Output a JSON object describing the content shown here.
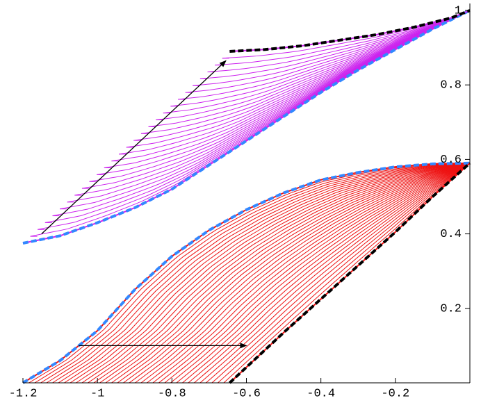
{
  "chart_data": {
    "type": "curve-family",
    "xlim": [
      -1.2,
      0
    ],
    "ylim": [
      0,
      1
    ],
    "xticks": [
      -1.2,
      -1,
      -0.8,
      -0.6,
      -0.4,
      -0.2
    ],
    "yticks": [
      0.2,
      0.4,
      0.6,
      0.8,
      1
    ],
    "families": [
      {
        "color": "#cc22ee",
        "count": 28,
        "start": {
          "color": "#3388ff",
          "x": [
            -1.2,
            -1.1,
            -1.0,
            -0.9,
            -0.8,
            -0.7,
            -0.6,
            -0.5,
            -0.4,
            -0.3,
            -0.2,
            -0.1,
            0
          ],
          "y": [
            0.375,
            0.395,
            0.43,
            0.47,
            0.52,
            0.585,
            0.65,
            0.715,
            0.78,
            0.84,
            0.895,
            0.95,
            1
          ]
        },
        "end": {
          "color": "#000000",
          "x": [
            -0.645,
            -0.55,
            -0.45,
            -0.35,
            -0.25,
            -0.15,
            -0.05,
            0
          ],
          "y": [
            0.89,
            0.895,
            0.905,
            0.92,
            0.935,
            0.955,
            0.98,
            1
          ]
        },
        "arrow": {
          "x": [
            -1.15,
            -0.655
          ],
          "y": [
            0.4,
            0.865
          ]
        }
      },
      {
        "color": "#ee1111",
        "count": 35,
        "start": {
          "color": "#3388ff",
          "x": [
            -1.2,
            -1.1,
            -1.0,
            -0.9,
            -0.8,
            -0.7,
            -0.6,
            -0.5,
            -0.4,
            -0.3,
            -0.2,
            -0.1,
            0
          ],
          "y": [
            0,
            0.06,
            0.14,
            0.25,
            0.34,
            0.41,
            0.465,
            0.51,
            0.545,
            0.565,
            0.58,
            0.588,
            0.59
          ]
        },
        "end": {
          "color": "#000000",
          "x": [
            -0.645,
            -0.5,
            -0.4,
            -0.3,
            -0.2,
            -0.1,
            0
          ],
          "y": [
            0,
            0.135,
            0.225,
            0.315,
            0.405,
            0.5,
            0.59
          ]
        },
        "arrow": {
          "x": [
            -1.05,
            -0.6
          ],
          "y": [
            0.1,
            0.1
          ]
        }
      }
    ]
  }
}
